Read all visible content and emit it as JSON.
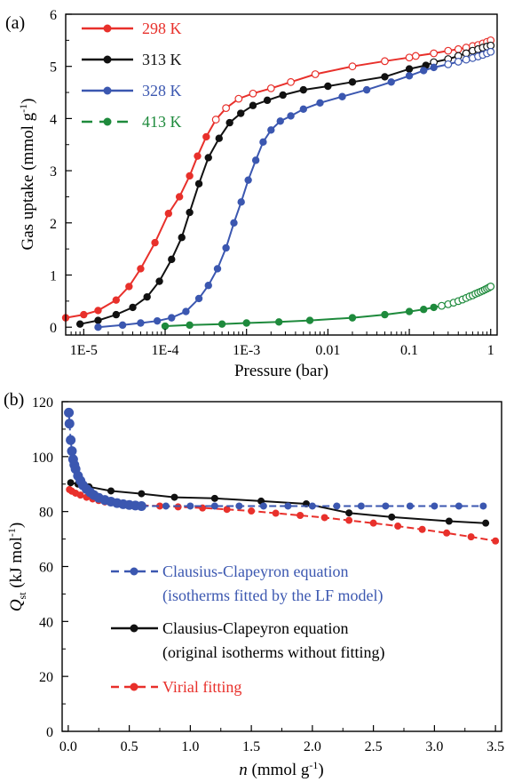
{
  "panels": {
    "a": {
      "label": "(a)"
    },
    "b": {
      "label": "(b)"
    }
  },
  "chart_data": [
    {
      "type": "line",
      "panel": "(a)",
      "xlabel": "Pressure (bar)",
      "ylabel": "Gas uptake (mmol g-1)",
      "ylabel_parts": {
        "main": "Gas uptake (mmol g",
        "sup": "-1",
        "close": ")"
      },
      "xscale": "log",
      "xlim": [
        6e-06,
        1.2
      ],
      "ylim": [
        -0.15,
        6
      ],
      "xticks": [
        {
          "value": 1e-05,
          "label": "1E-5"
        },
        {
          "value": 0.0001,
          "label": "1E-4"
        },
        {
          "value": 0.001,
          "label": "1E-3"
        },
        {
          "value": 0.01,
          "label": "0.01"
        },
        {
          "value": 0.1,
          "label": "0.1"
        },
        {
          "value": 1,
          "label": "1"
        }
      ],
      "yticks": [
        0,
        1,
        2,
        3,
        4,
        5,
        6
      ],
      "legend_position": "top-left",
      "series": [
        {
          "name": "298 K",
          "color": "#e8302b",
          "x": [
            6e-06,
            1e-05,
            1.5e-05,
            2.5e-05,
            3.6e-05,
            5e-05,
            7.5e-05,
            0.00011,
            0.00015,
            0.0002,
            0.00025,
            0.00032,
            0.00042,
            0.00056,
            0.0008,
            0.0012,
            0.002,
            0.0035,
            0.007,
            0.02,
            0.05,
            0.1,
            0.12,
            0.2,
            0.3,
            0.4,
            0.5,
            0.6,
            0.7,
            0.8,
            0.9,
            1.0
          ],
          "y": [
            0.18,
            0.24,
            0.32,
            0.52,
            0.78,
            1.12,
            1.62,
            2.18,
            2.5,
            2.9,
            3.28,
            3.65,
            3.98,
            4.2,
            4.38,
            4.48,
            4.58,
            4.7,
            4.85,
            5.0,
            5.1,
            5.17,
            5.2,
            5.25,
            5.3,
            5.33,
            5.36,
            5.39,
            5.41,
            5.44,
            5.47,
            5.5
          ],
          "open_from_index": 12
        },
        {
          "name": "313 K",
          "color": "#111111",
          "x": [
            9e-06,
            1.5e-05,
            2.5e-05,
            4e-05,
            6e-05,
            8.5e-05,
            0.00012,
            0.00016,
            0.0002,
            0.00026,
            0.00034,
            0.00046,
            0.00062,
            0.00085,
            0.0012,
            0.0018,
            0.0028,
            0.005,
            0.01,
            0.02,
            0.05,
            0.1,
            0.16,
            0.2,
            0.3,
            0.4,
            0.5,
            0.6,
            0.7,
            0.8,
            0.9,
            1.0
          ],
          "y": [
            0.06,
            0.13,
            0.24,
            0.38,
            0.58,
            0.88,
            1.3,
            1.72,
            2.2,
            2.75,
            3.25,
            3.62,
            3.92,
            4.1,
            4.25,
            4.35,
            4.45,
            4.55,
            4.62,
            4.7,
            4.8,
            4.95,
            5.02,
            5.08,
            5.14,
            5.2,
            5.25,
            5.3,
            5.33,
            5.36,
            5.38,
            5.4
          ],
          "open_from_index": 23
        },
        {
          "name": "328 K",
          "color": "#3b57b0",
          "x": [
            1.5e-05,
            3e-05,
            5e-05,
            8e-05,
            0.00012,
            0.00018,
            0.00026,
            0.00034,
            0.00044,
            0.00056,
            0.0007,
            0.00086,
            0.00105,
            0.0013,
            0.0016,
            0.002,
            0.0026,
            0.0035,
            0.005,
            0.008,
            0.015,
            0.03,
            0.06,
            0.1,
            0.15,
            0.2,
            0.3,
            0.4,
            0.5,
            0.6,
            0.7,
            0.8,
            0.9,
            1.0
          ],
          "y": [
            0.0,
            0.04,
            0.08,
            0.12,
            0.18,
            0.3,
            0.55,
            0.8,
            1.12,
            1.52,
            2.0,
            2.4,
            2.82,
            3.2,
            3.55,
            3.78,
            3.95,
            4.05,
            4.18,
            4.3,
            4.42,
            4.55,
            4.7,
            4.82,
            4.92,
            4.98,
            5.04,
            5.09,
            5.13,
            5.16,
            5.19,
            5.22,
            5.25,
            5.28
          ],
          "open_from_index": 26
        },
        {
          "name": "413 K",
          "color": "#1e8a3c",
          "dashed": true,
          "x": [
            0.0001,
            0.0002,
            0.0005,
            0.001,
            0.0025,
            0.006,
            0.02,
            0.05,
            0.1,
            0.15,
            0.2,
            0.25,
            0.3,
            0.35,
            0.4,
            0.45,
            0.5,
            0.55,
            0.6,
            0.65,
            0.7,
            0.75,
            0.8,
            0.85,
            0.9,
            0.95,
            1.0
          ],
          "y": [
            0.02,
            0.04,
            0.06,
            0.08,
            0.1,
            0.13,
            0.18,
            0.24,
            0.3,
            0.34,
            0.38,
            0.41,
            0.44,
            0.47,
            0.5,
            0.53,
            0.56,
            0.59,
            0.61,
            0.64,
            0.66,
            0.68,
            0.7,
            0.72,
            0.74,
            0.76,
            0.78
          ],
          "open_from_index": 11
        }
      ]
    },
    {
      "type": "line",
      "panel": "(b)",
      "xlabel": "n (mmol g-1)",
      "xlabel_parts": {
        "italic": "n",
        "main": " (mmol g",
        "sup": "-1",
        "close": ")"
      },
      "ylabel": "Qst (kJ mol-1)",
      "ylabel_parts": {
        "italic": "Q",
        "sub": "st",
        "main": " (kJ mol",
        "sup": "-1",
        "close": ")"
      },
      "xlim": [
        -0.05,
        3.55
      ],
      "ylim": [
        0,
        120
      ],
      "xticks": [
        0.0,
        0.5,
        1.0,
        1.5,
        2.0,
        2.5,
        3.0,
        3.5
      ],
      "xtick_labels": [
        "0.0",
        "0.5",
        "1.0",
        "1.5",
        "2.0",
        "2.5",
        "3.0",
        "3.5"
      ],
      "yticks": [
        0,
        20,
        40,
        60,
        80,
        100,
        120
      ],
      "legend_position": "bottom-left",
      "series": [
        {
          "name_lines": [
            "Clausius-Clapeyron equation",
            "(isotherms fitted by the LF model)"
          ],
          "color": "#3b57b0",
          "dashed": true,
          "x": [
            0.005,
            0.01,
            0.02,
            0.03,
            0.04,
            0.05,
            0.06,
            0.08,
            0.1,
            0.12,
            0.15,
            0.18,
            0.21,
            0.25,
            0.3,
            0.35,
            0.4,
            0.45,
            0.5,
            0.55,
            0.6,
            0.8,
            1.0,
            1.2,
            1.4,
            1.6,
            1.8,
            2.0,
            2.2,
            2.4,
            2.6,
            2.8,
            3.0,
            3.2,
            3.4
          ],
          "y": [
            116,
            112,
            106,
            102,
            99,
            97,
            95.5,
            93,
            91.2,
            89.6,
            88.2,
            87,
            86,
            85,
            84.2,
            83.6,
            83.1,
            82.7,
            82.4,
            82.2,
            82,
            82,
            82,
            82,
            82,
            82,
            82,
            82,
            82,
            82,
            82,
            82,
            82,
            82,
            82
          ],
          "dense_to_index": 20
        },
        {
          "name_lines": [
            "Clausius-Clapeyron equation",
            "(original isotherms without fitting)"
          ],
          "color": "#111111",
          "x": [
            0.02,
            0.08,
            0.17,
            0.35,
            0.6,
            0.87,
            1.2,
            1.58,
            1.95,
            2.3,
            2.65,
            3.12,
            3.42
          ],
          "y": [
            90.5,
            90,
            89,
            87.5,
            86.5,
            85.2,
            84.8,
            83.8,
            82.8,
            79.5,
            78,
            76.5,
            75.8
          ]
        },
        {
          "name_lines": [
            "Virial fitting"
          ],
          "color": "#e8302b",
          "dashed": true,
          "x": [
            0.01,
            0.03,
            0.06,
            0.1,
            0.15,
            0.2,
            0.25,
            0.3,
            0.4,
            0.5,
            0.6,
            0.75,
            0.9,
            1.1,
            1.3,
            1.5,
            1.7,
            1.9,
            2.1,
            2.3,
            2.5,
            2.7,
            2.9,
            3.1,
            3.3,
            3.5
          ],
          "y": [
            88,
            87.4,
            86.7,
            86,
            85.2,
            84.6,
            84,
            83.5,
            83,
            82.6,
            82.3,
            82,
            81.7,
            81.3,
            80.8,
            80.2,
            79.4,
            78.6,
            77.8,
            76.8,
            75.8,
            74.7,
            73.5,
            72.2,
            70.8,
            69.3
          ]
        }
      ]
    }
  ]
}
